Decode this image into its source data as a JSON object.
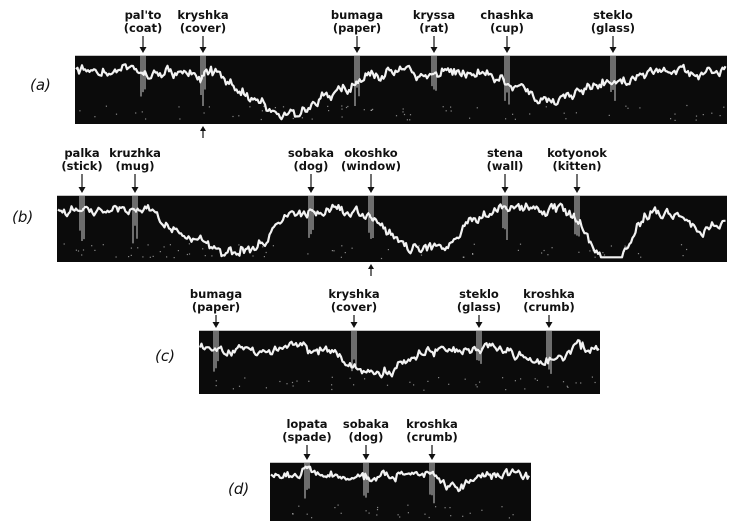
{
  "colors": {
    "background": "#ffffff",
    "strip": "#0b0b0b",
    "trace": "#f2f2f2",
    "ink": "#111111"
  },
  "panels": [
    {
      "label": "(a)",
      "stimulus_marker": true,
      "words": [
        {
          "word": "pal'to",
          "gloss": "(coat)"
        },
        {
          "word": "kryshka",
          "gloss": "(cover)"
        },
        {
          "word": "bumaga",
          "gloss": "(paper)"
        },
        {
          "word": "kryssa",
          "gloss": "(rat)"
        },
        {
          "word": "chashka",
          "gloss": "(cup)"
        },
        {
          "word": "steklo",
          "gloss": "(glass)"
        }
      ]
    },
    {
      "label": "(b)",
      "stimulus_marker": true,
      "words": [
        {
          "word": "palka",
          "gloss": "(stick)"
        },
        {
          "word": "kruzhka",
          "gloss": "(mug)"
        },
        {
          "word": "sobaka",
          "gloss": "(dog)"
        },
        {
          "word": "okoshko",
          "gloss": "(window)"
        },
        {
          "word": "stena",
          "gloss": "(wall)"
        },
        {
          "word": "kotyonok",
          "gloss": "(kitten)"
        }
      ]
    },
    {
      "label": "(c)",
      "stimulus_marker": false,
      "words": [
        {
          "word": "bumaga",
          "gloss": "(paper)"
        },
        {
          "word": "kryshka",
          "gloss": "(cover)"
        },
        {
          "word": "steklo",
          "gloss": "(glass)"
        },
        {
          "word": "kroshka",
          "gloss": "(crumb)"
        }
      ]
    },
    {
      "label": "(d)",
      "stimulus_marker": false,
      "words": [
        {
          "word": "lopata",
          "gloss": "(spade)"
        },
        {
          "word": "sobaka",
          "gloss": "(dog)"
        },
        {
          "word": "kroshka",
          "gloss": "(crumb)"
        }
      ]
    }
  ]
}
